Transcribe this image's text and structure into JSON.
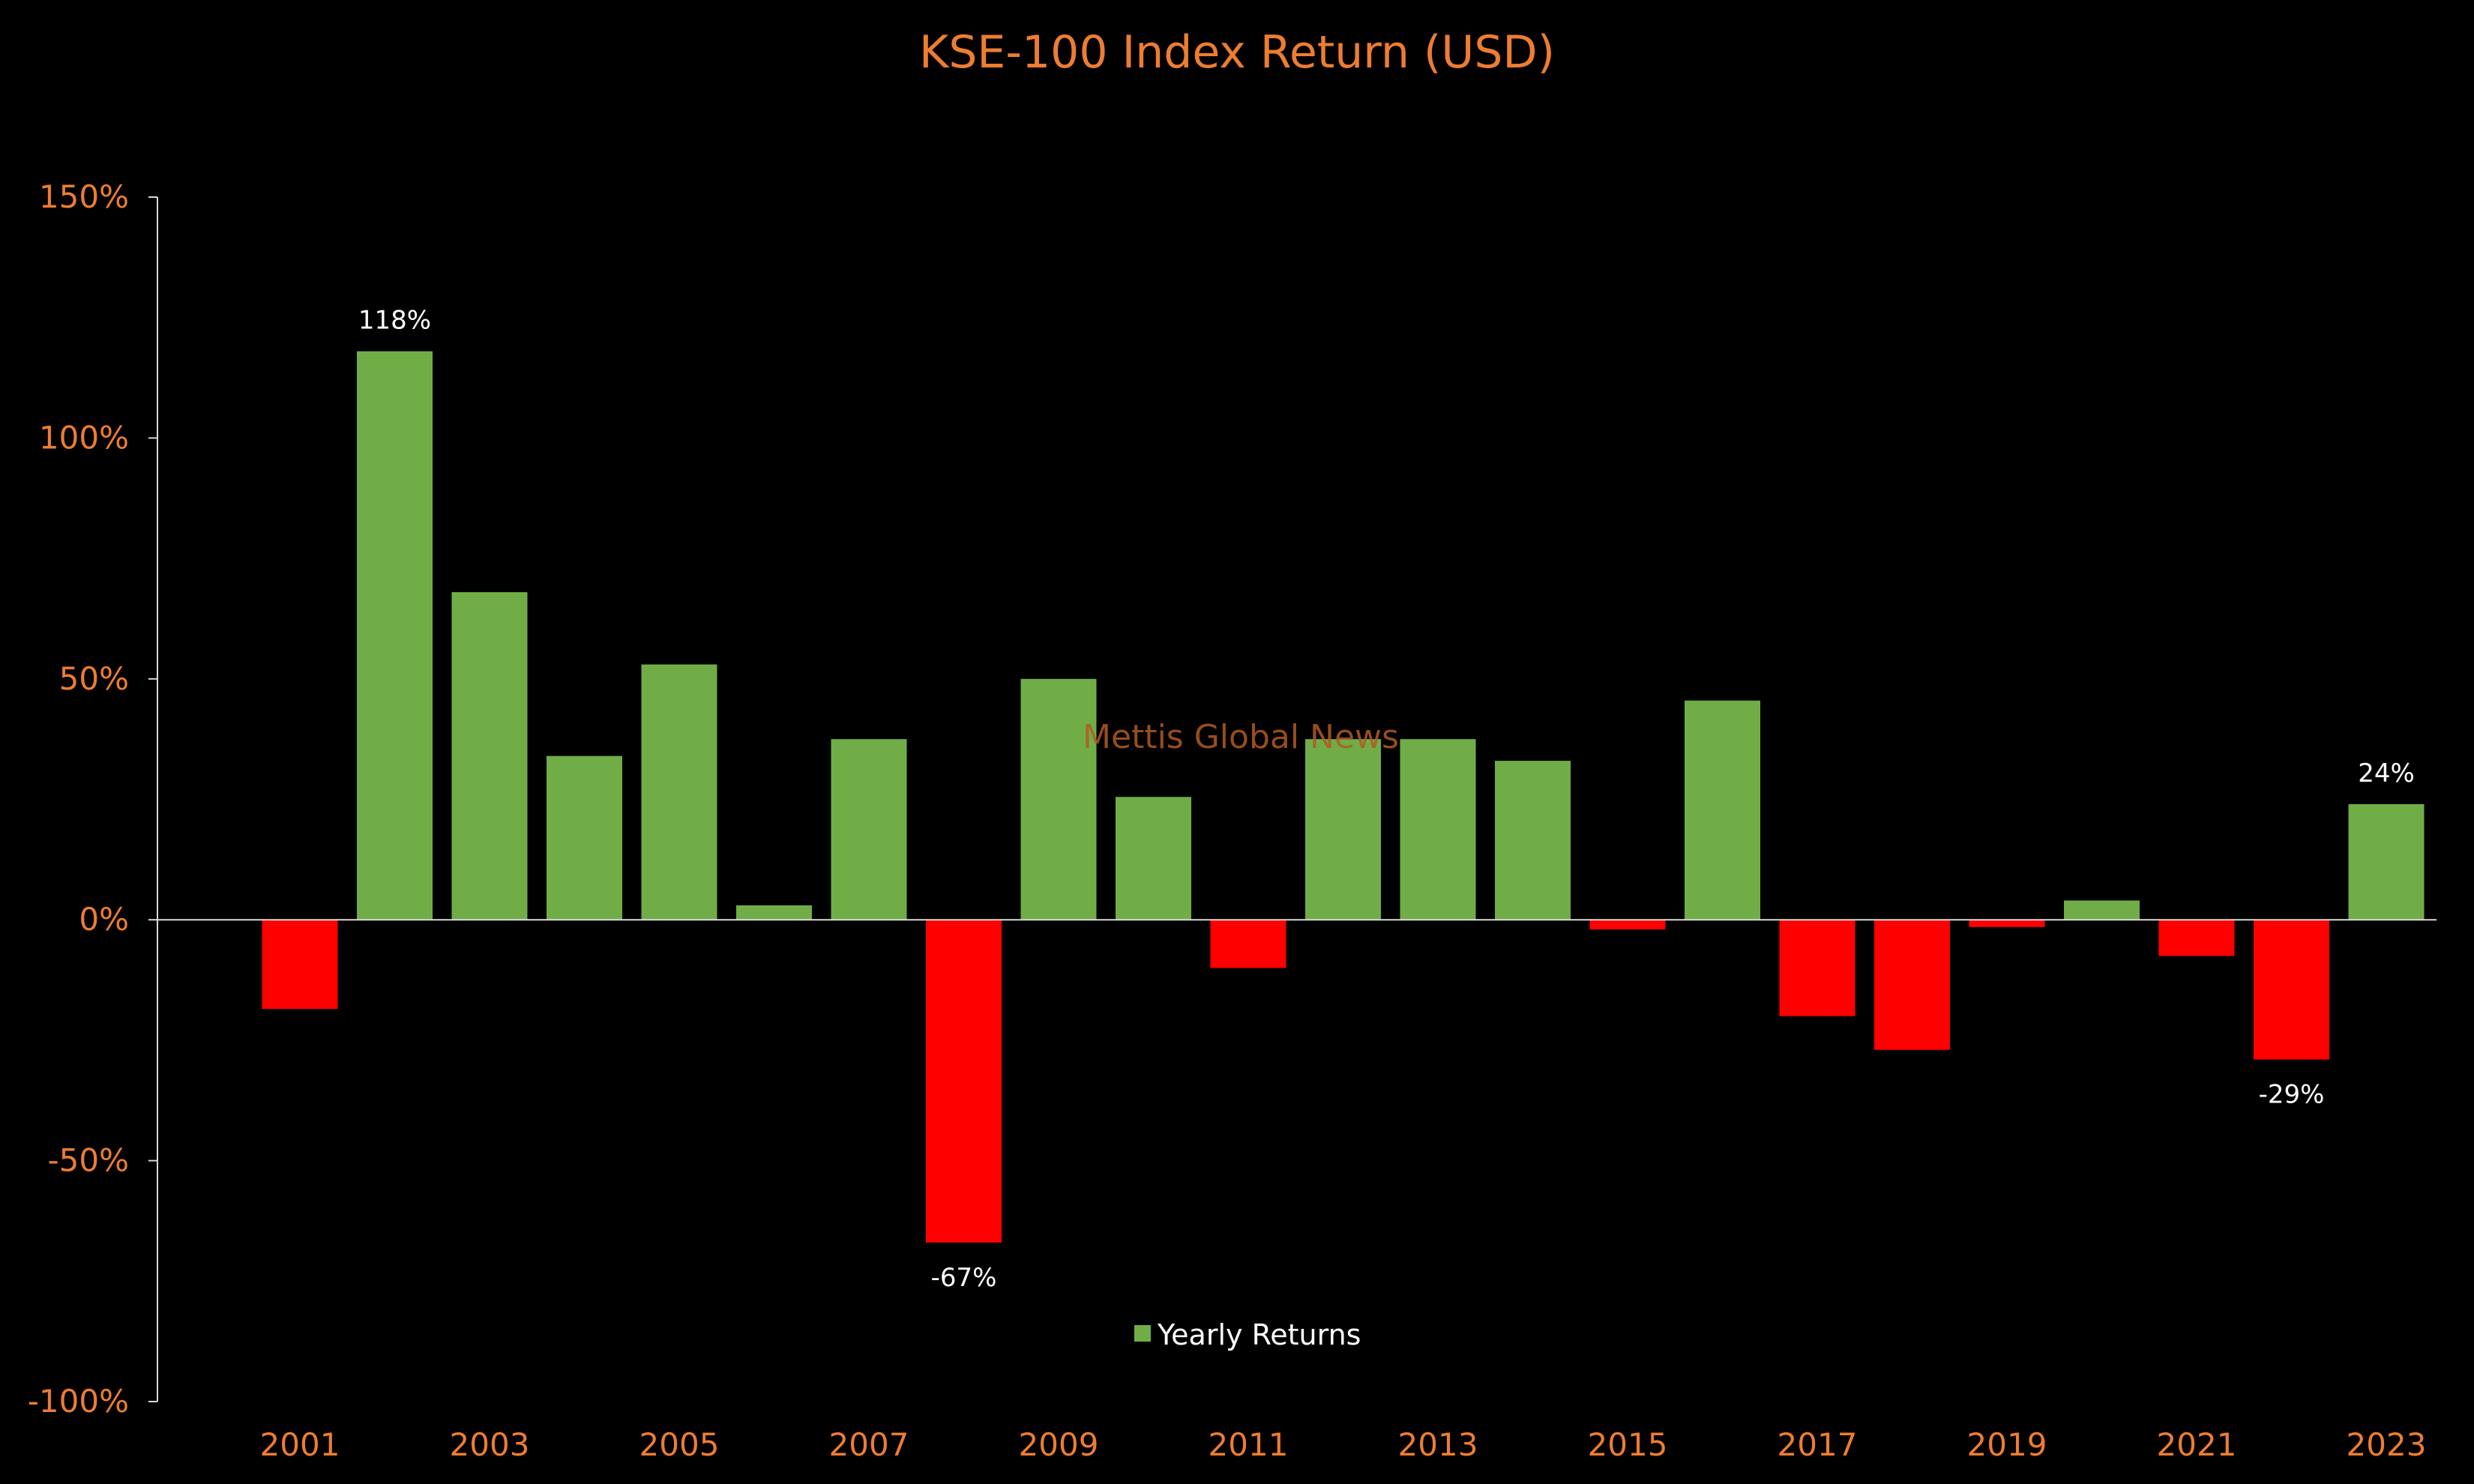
{
  "chart_data": {
    "type": "bar",
    "title": "KSE-100 Index Return (USD)",
    "xlabel": "",
    "ylabel": "",
    "ylim": [
      -100,
      150
    ],
    "y_ticks": [
      -100,
      -50,
      0,
      50,
      100,
      150
    ],
    "y_tick_labels": [
      "-100%",
      "-50%",
      "0%",
      "50%",
      "100%",
      "150%"
    ],
    "categories": [
      "2001",
      "2002",
      "2003",
      "2004",
      "2005",
      "2006",
      "2007",
      "2008",
      "2009",
      "2010",
      "2011",
      "2012",
      "2013",
      "2014",
      "2015",
      "2016",
      "2017",
      "2018",
      "2019",
      "2020",
      "2021",
      "2022",
      "2023"
    ],
    "x_tick_labels": [
      "2001",
      "2003",
      "2005",
      "2007",
      "2009",
      "2011",
      "2013",
      "2015",
      "2017",
      "2019",
      "2021",
      "2023"
    ],
    "series": [
      {
        "name": "Yearly Returns",
        "values": [
          -18.5,
          118,
          68,
          34,
          53,
          3,
          37.5,
          -67,
          50,
          25.5,
          -10,
          37.5,
          37.5,
          33,
          -2,
          45.5,
          -20,
          -27,
          -1.5,
          4,
          -7.5,
          -29,
          24
        ]
      }
    ],
    "data_labels": [
      {
        "category": "2002",
        "text": "118%"
      },
      {
        "category": "2008",
        "text": "-67%"
      },
      {
        "category": "2022",
        "text": "-29%"
      },
      {
        "category": "2023",
        "text": "24%"
      }
    ],
    "legend": {
      "placement": "bottom-center",
      "entries": [
        "Yearly Returns"
      ]
    },
    "colors": {
      "background": "#000000",
      "positive": "#70AD47",
      "negative": "#FF0000",
      "text_accent": "#ED7D31",
      "axis": "#D9D9D9",
      "data_label": "#FFFFFF",
      "watermark": "#B05A22"
    },
    "grid": false,
    "watermark": "Mettis Global News"
  }
}
